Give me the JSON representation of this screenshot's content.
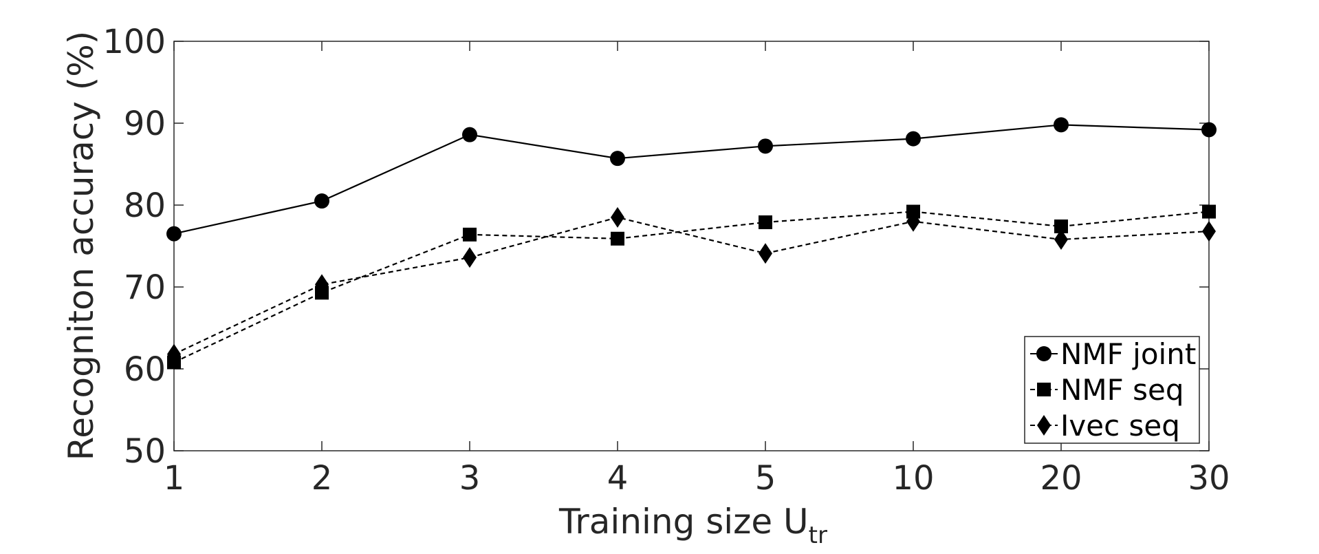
{
  "chart_data": {
    "type": "line",
    "title": "",
    "xlabel": "Training size U",
    "xlabel_subscript": "tr",
    "ylabel": "Recogniton accuracy (%)",
    "categories": [
      "1",
      "2",
      "3",
      "4",
      "5",
      "10",
      "20",
      "30"
    ],
    "ylim": [
      50,
      100
    ],
    "yticks": [
      50,
      60,
      70,
      80,
      90,
      100
    ],
    "grid": false,
    "legend_position": "bottom-right",
    "series": [
      {
        "name": "NMF joint",
        "marker": "circle",
        "line_style": "solid",
        "values": [
          76.5,
          80.5,
          88.6,
          85.7,
          87.2,
          88.1,
          89.8,
          89.2
        ]
      },
      {
        "name": "NMF seq",
        "marker": "square",
        "line_style": "dashed",
        "values": [
          60.8,
          69.3,
          76.4,
          75.9,
          77.9,
          79.2,
          77.4,
          79.2
        ]
      },
      {
        "name": "Ivec seq",
        "marker": "diamond",
        "line_style": "dashed",
        "values": [
          61.8,
          70.3,
          73.6,
          78.5,
          74.1,
          78.0,
          75.8,
          76.8
        ]
      }
    ]
  }
}
